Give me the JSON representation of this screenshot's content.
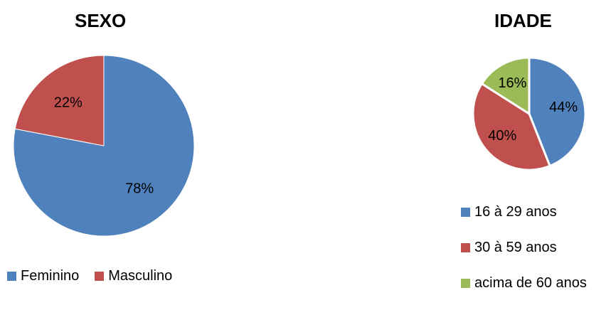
{
  "chart_data": [
    {
      "type": "pie",
      "title": "SEXO",
      "categories": [
        "Feminino",
        "Masculino"
      ],
      "values": [
        78,
        22
      ],
      "labels": [
        "78%",
        "22%"
      ],
      "colors": [
        "#4F81BD",
        "#C0504D"
      ],
      "legend": "bottom"
    },
    {
      "type": "pie",
      "title": "IDADE",
      "categories": [
        "16 à 29 anos",
        "30 à 59 anos",
        "acima de 60 anos"
      ],
      "values": [
        44,
        40,
        16
      ],
      "labels": [
        "44%",
        "40%",
        "16%"
      ],
      "colors": [
        "#4F81BD",
        "#C0504D",
        "#9BBB59"
      ],
      "legend": "bottom"
    }
  ]
}
